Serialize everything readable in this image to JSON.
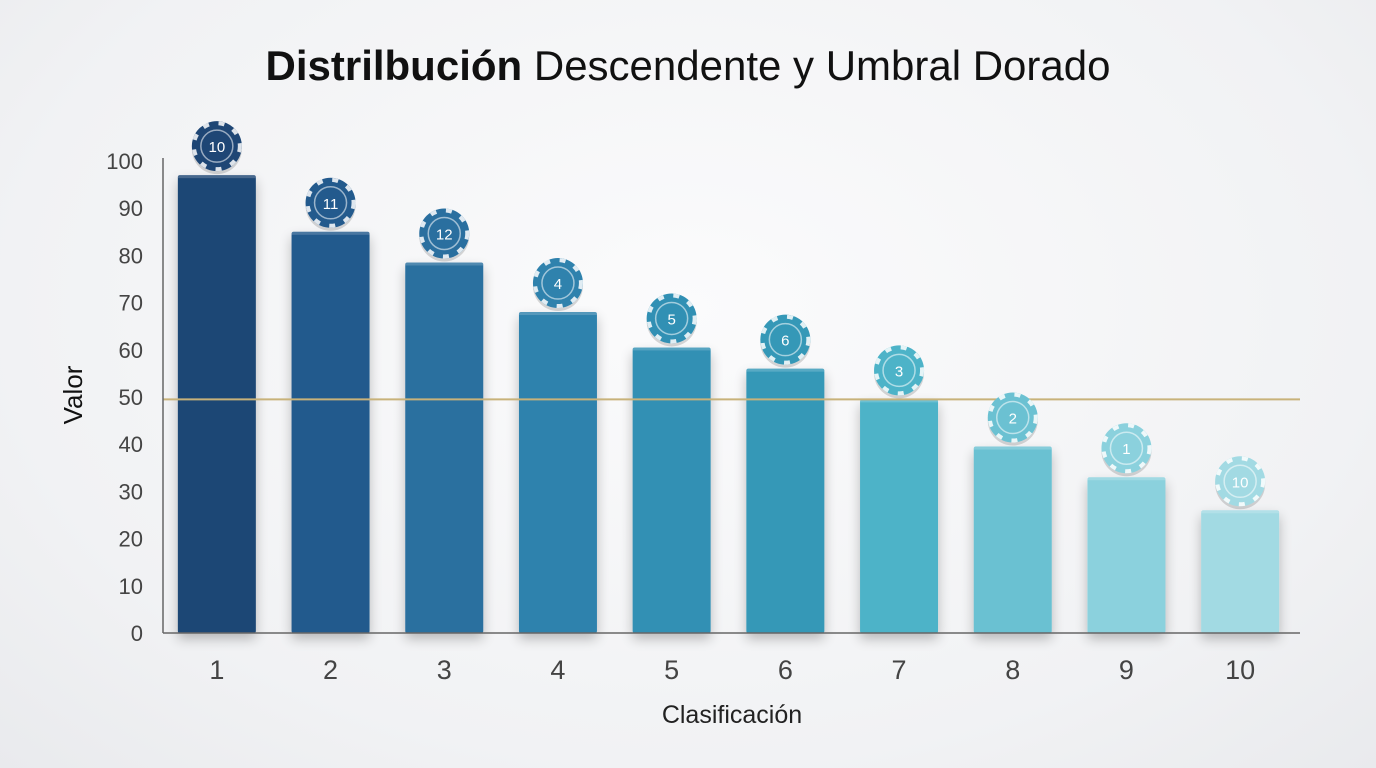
{
  "chart_data": {
    "type": "bar",
    "title_bold": "Distrilbución",
    "title_rest": " Descendente y Umbral Dorado",
    "xlabel": "Clasificación",
    "ylabel": "Valor",
    "ylim": [
      0,
      100
    ],
    "yticks": [
      0,
      10,
      20,
      30,
      40,
      50,
      60,
      70,
      80,
      90,
      100
    ],
    "categories": [
      "1",
      "2",
      "3",
      "4",
      "5",
      "6",
      "7",
      "8",
      "9",
      "10"
    ],
    "values": [
      97,
      85,
      78.5,
      68,
      60.5,
      56,
      49.5,
      39.5,
      33,
      26
    ],
    "chip_labels": [
      "10",
      "11",
      "12",
      "4",
      "5",
      "6",
      "3",
      "2",
      "1",
      "10"
    ],
    "threshold": 49.5,
    "colors": {
      "bars": [
        "#1e4675",
        "#235a8d",
        "#2a6f9f",
        "#2f82ad",
        "#3190b4",
        "#3598b7",
        "#4db3c8",
        "#6bc1d2",
        "#8bd1dd",
        "#a2dae3"
      ],
      "threshold": "#c8b27a",
      "axis": "#555555",
      "text": "#111111",
      "tick_text": "#444444"
    },
    "grid": false,
    "legend": "none"
  }
}
